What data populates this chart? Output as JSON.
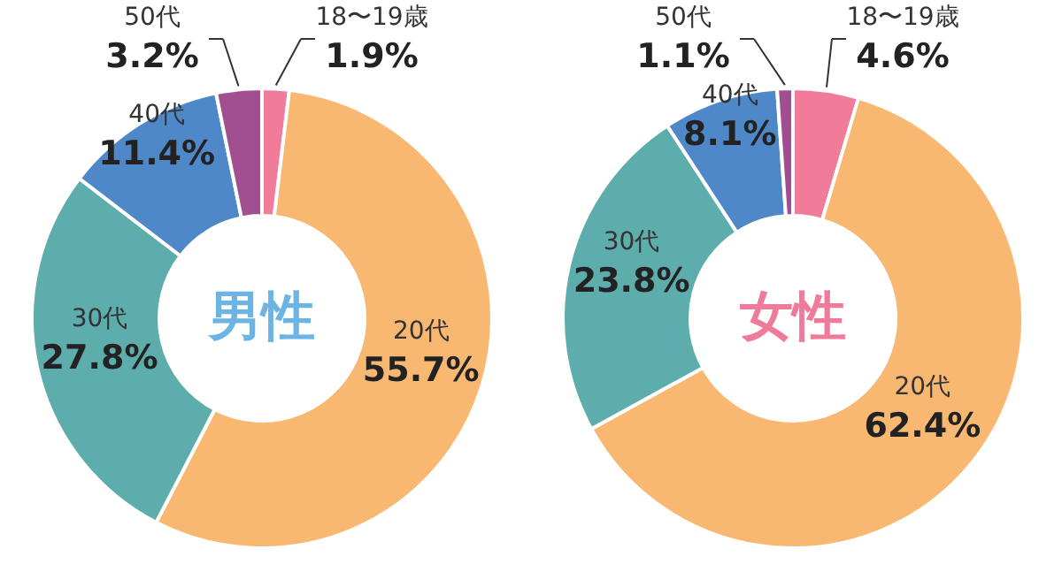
{
  "chart_data": [
    {
      "type": "donut",
      "title": "男性",
      "categories": [
        "18〜19歳",
        "20代",
        "30代",
        "40代",
        "50代"
      ],
      "values": [
        1.9,
        55.7,
        27.8,
        11.4,
        3.2
      ],
      "value_labels": [
        "1.9%",
        "55.7%",
        "27.8%",
        "11.4%",
        "3.2%"
      ],
      "colors": [
        "#f07c9a",
        "#f9b872",
        "#5eadad",
        "#4f88c8",
        "#a24f92"
      ],
      "legend": false
    },
    {
      "type": "donut",
      "title": "女性",
      "categories": [
        "18〜19歳",
        "20代",
        "30代",
        "40代",
        "50代"
      ],
      "values": [
        4.6,
        62.4,
        23.8,
        8.1,
        1.1
      ],
      "value_labels": [
        "4.6%",
        "62.4%",
        "23.8%",
        "8.1%",
        "1.1%"
      ],
      "colors": [
        "#f07c9a",
        "#f9b872",
        "#5eadad",
        "#4f88c8",
        "#a24f92"
      ],
      "legend": false
    }
  ]
}
